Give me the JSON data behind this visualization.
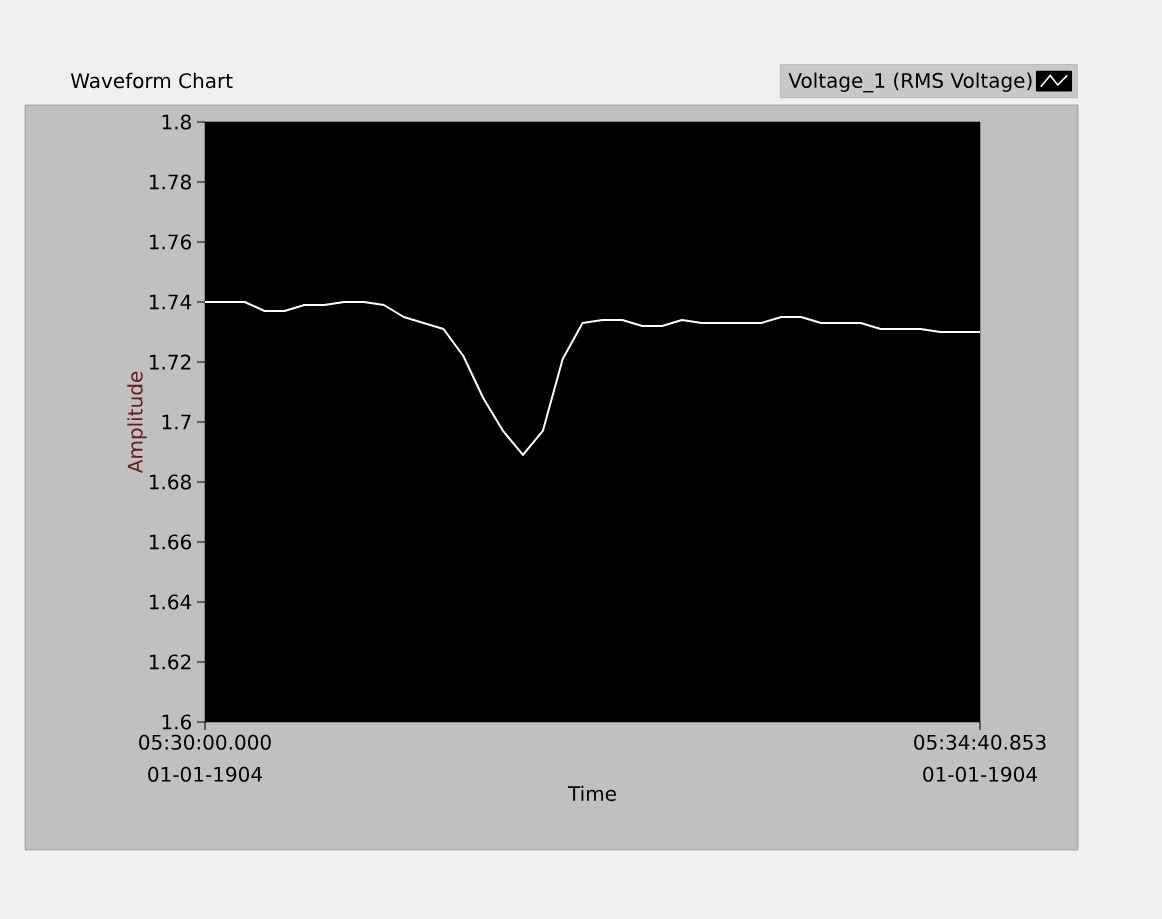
{
  "chart_data": {
    "type": "line",
    "title": "Waveform Chart",
    "xlabel": "Time",
    "ylabel": "Amplitude",
    "categories": [
      "05:30:00.000 01-01-1904",
      null,
      null,
      null,
      null,
      null,
      null,
      null,
      null,
      null,
      null,
      null,
      null,
      null,
      null,
      null,
      null,
      null,
      null,
      null,
      null,
      null,
      null,
      null,
      null,
      null,
      null,
      null,
      null,
      null,
      null,
      null,
      null,
      null,
      null,
      null,
      null,
      null,
      null,
      "05:34:40.853 01-01-1904"
    ],
    "ylim": [
      1.6,
      1.8
    ],
    "yticks": [
      1.6,
      1.62,
      1.64,
      1.66,
      1.68,
      1.7,
      1.72,
      1.74,
      1.76,
      1.78,
      1.8
    ],
    "legend": "top right",
    "marker": "none",
    "line_style": "solid",
    "series": [
      {
        "name": "Voltage_1 (RMS Voltage)",
        "color": "#ffffff",
        "values": [
          1.74,
          1.74,
          1.74,
          1.737,
          1.737,
          1.739,
          1.739,
          1.74,
          1.74,
          1.739,
          1.735,
          1.733,
          1.731,
          1.722,
          1.708,
          1.697,
          1.689,
          1.697,
          1.721,
          1.733,
          1.734,
          1.734,
          1.732,
          1.732,
          1.734,
          1.733,
          1.733,
          1.733,
          1.733,
          1.735,
          1.735,
          1.733,
          1.733,
          1.733,
          1.731,
          1.731,
          1.731,
          1.73,
          1.73,
          1.73
        ]
      }
    ]
  }
}
